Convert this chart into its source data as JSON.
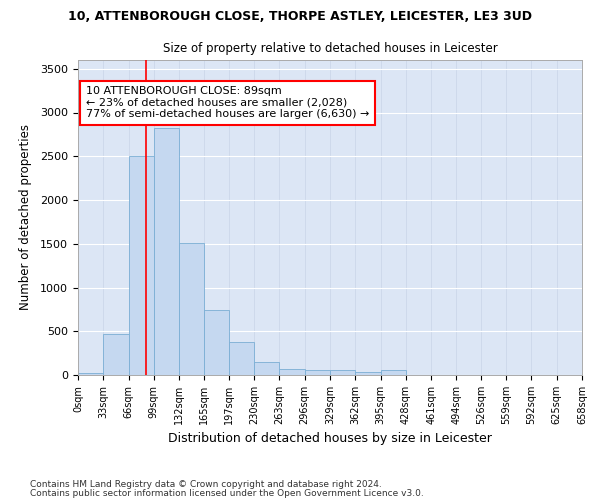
{
  "title": "10, ATTENBOROUGH CLOSE, THORPE ASTLEY, LEICESTER, LE3 3UD",
  "subtitle": "Size of property relative to detached houses in Leicester",
  "xlabel": "Distribution of detached houses by size in Leicester",
  "ylabel": "Number of detached properties",
  "bar_color": "#c5d8f0",
  "bar_edge_color": "#7aaed4",
  "background_color": "#dce6f5",
  "grid_color": "#ffffff",
  "fig_bg_color": "#ffffff",
  "vline_value": 89,
  "annotation_text": "10 ATTENBOROUGH CLOSE: 89sqm\n← 23% of detached houses are smaller (2,028)\n77% of semi-detached houses are larger (6,630) →",
  "bin_edges": [
    0,
    33,
    66,
    99,
    132,
    165,
    197,
    230,
    263,
    296,
    329,
    362,
    395,
    428,
    461,
    494,
    526,
    559,
    592,
    625,
    658
  ],
  "bin_counts": [
    28,
    470,
    2500,
    2820,
    1510,
    745,
    380,
    145,
    70,
    55,
    55,
    40,
    60,
    5,
    0,
    0,
    0,
    0,
    0,
    0
  ],
  "tick_labels": [
    "0sqm",
    "33sqm",
    "66sqm",
    "99sqm",
    "132sqm",
    "165sqm",
    "197sqm",
    "230sqm",
    "263sqm",
    "296sqm",
    "329sqm",
    "362sqm",
    "395sqm",
    "428sqm",
    "461sqm",
    "494sqm",
    "526sqm",
    "559sqm",
    "592sqm",
    "625sqm",
    "658sqm"
  ],
  "ylim": [
    0,
    3600
  ],
  "yticks": [
    0,
    500,
    1000,
    1500,
    2000,
    2500,
    3000,
    3500
  ],
  "footnote1": "Contains HM Land Registry data © Crown copyright and database right 2024.",
  "footnote2": "Contains public sector information licensed under the Open Government Licence v3.0."
}
